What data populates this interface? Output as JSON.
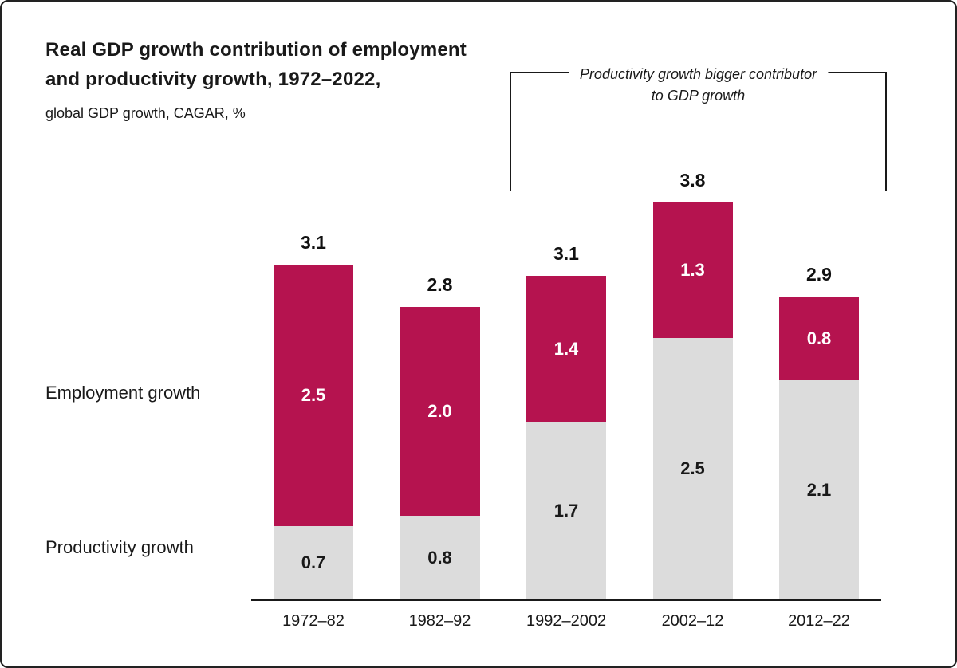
{
  "header": {
    "title_line1": "Real GDP growth contribution of employment",
    "title_line2": "and productivity growth, 1972–2022,",
    "subtitle": "global GDP growth, CAGAR, %"
  },
  "annotation": {
    "line1": "Productivity growth bigger contributor",
    "line2": "to GDP growth"
  },
  "side_labels": {
    "employment": "Employment growth",
    "productivity": "Productivity growth"
  },
  "colors": {
    "employment": "#b5134f",
    "productivity": "#dcdcdc",
    "text": "#191919",
    "background": "#ffffff"
  },
  "chart_data": {
    "type": "bar",
    "stacked": true,
    "title": "Real GDP growth contribution of employment and productivity growth, 1972–2022,",
    "subtitle": "global GDP growth, CAGAR, %",
    "categories": [
      "1972–82",
      "1982–92",
      "1992–2002",
      "2002–12",
      "2012–22"
    ],
    "series": [
      {
        "key": "employment",
        "name": "Employment growth",
        "color": "#b5134f",
        "values": [
          2.5,
          2.0,
          1.4,
          1.3,
          0.8
        ]
      },
      {
        "key": "productivity",
        "name": "Productivity growth",
        "color": "#dcdcdc",
        "values": [
          0.7,
          0.8,
          1.7,
          2.5,
          2.1
        ]
      }
    ],
    "totals": [
      3.1,
      2.8,
      3.1,
      3.8,
      2.9
    ],
    "annotation": "Productivity growth bigger contributor to GDP growth",
    "annotation_categories": [
      "1992–2002",
      "2002–12",
      "2012–22"
    ],
    "ylim": [
      0,
      3.8
    ],
    "grid": false,
    "legend_position": "left"
  }
}
